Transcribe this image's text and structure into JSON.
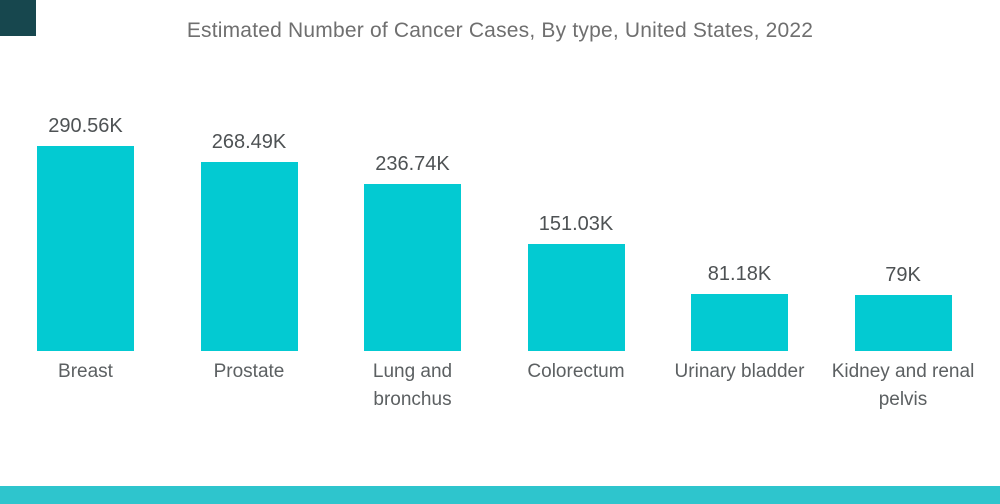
{
  "page": {
    "background": "#FFFFFF",
    "brand_square_color": "#17474E",
    "footer_bar_color": "#2EC5CD"
  },
  "chart_data": {
    "type": "bar",
    "orientation": "vertical",
    "title": "Estimated Number of Cancer Cases, By type, United States, 2022",
    "categories": [
      "Breast",
      "Prostate",
      "Lung and\nbronchus",
      "Colorectum",
      "Urinary bladder",
      "Kidney and renal\npelvis"
    ],
    "values": [
      290.56,
      268.49,
      236.74,
      151.03,
      81.18,
      79
    ],
    "value_labels": [
      "290.56K",
      "268.49K",
      "236.74K",
      "151.03K",
      "81.18K",
      "79K"
    ],
    "unit": "K (thousand cases)",
    "xlabel": "",
    "ylabel": "",
    "ylim": [
      0,
      290.56
    ],
    "grid": false,
    "legend": false,
    "axes_shown": false,
    "bar_color": "#03CAD2",
    "title_color": "#6F6F6F",
    "value_label_color": "#4E5254",
    "category_label_color": "#5C6062"
  }
}
